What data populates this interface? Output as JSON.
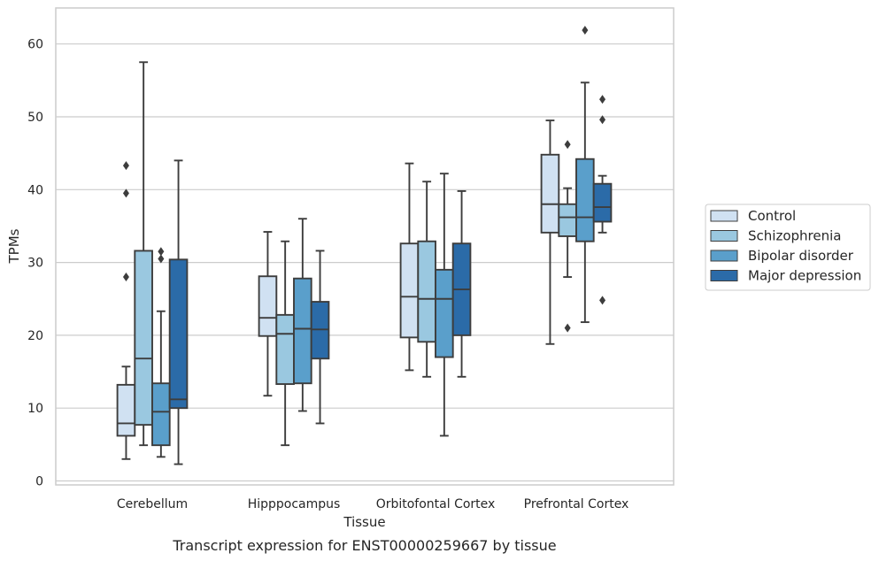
{
  "chart_data": {
    "type": "box",
    "xlabel": "Tissue",
    "ylabel": "TPMs",
    "caption": "Transcript expression for ENST00000259667 by tissue",
    "ylim": [
      -0.5,
      65
    ],
    "yticks": [
      0,
      10,
      20,
      30,
      40,
      50,
      60
    ],
    "grid": true,
    "legend_position": "right",
    "categories": [
      "Cerebellum",
      "Hipppocampus",
      "Orbitofontal Cortex",
      "Prefrontal Cortex"
    ],
    "series": [
      {
        "name": "Control",
        "color": "#d0e1f2",
        "boxes": [
          {
            "whislo": 3.0,
            "q1": 6.2,
            "med": 7.9,
            "q3": 13.2,
            "whishi": 15.7,
            "fliers": [
              28.0,
              39.5,
              43.3
            ]
          },
          {
            "whislo": 11.7,
            "q1": 19.9,
            "med": 22.4,
            "q3": 28.1,
            "whishi": 34.2,
            "fliers": []
          },
          {
            "whislo": 15.2,
            "q1": 19.7,
            "med": 25.3,
            "q3": 32.6,
            "whishi": 43.6,
            "fliers": []
          },
          {
            "whislo": 18.8,
            "q1": 34.1,
            "med": 38.0,
            "q3": 44.8,
            "whishi": 49.5,
            "fliers": []
          }
        ]
      },
      {
        "name": "Schizophrenia",
        "color": "#9ac8e0",
        "boxes": [
          {
            "whislo": 4.9,
            "q1": 7.7,
            "med": 16.8,
            "q3": 31.6,
            "whishi": 57.5,
            "fliers": []
          },
          {
            "whislo": 4.9,
            "q1": 13.3,
            "med": 20.2,
            "q3": 22.8,
            "whishi": 32.9,
            "fliers": []
          },
          {
            "whislo": 14.3,
            "q1": 19.1,
            "med": 25.0,
            "q3": 32.9,
            "whishi": 41.1,
            "fliers": []
          },
          {
            "whislo": 28.0,
            "q1": 33.6,
            "med": 36.2,
            "q3": 38.0,
            "whishi": 40.2,
            "fliers": [
              21.0,
              46.2
            ]
          }
        ]
      },
      {
        "name": "Bipolar disorder",
        "color": "#5a9fcb",
        "boxes": [
          {
            "whislo": 3.3,
            "q1": 4.9,
            "med": 9.5,
            "q3": 13.4,
            "whishi": 23.3,
            "fliers": [
              30.5,
              31.5
            ]
          },
          {
            "whislo": 9.6,
            "q1": 13.4,
            "med": 20.9,
            "q3": 27.8,
            "whishi": 36.0,
            "fliers": []
          },
          {
            "whislo": 6.2,
            "q1": 17.0,
            "med": 25.0,
            "q3": 29.0,
            "whishi": 42.2,
            "fliers": []
          },
          {
            "whislo": 21.8,
            "q1": 32.9,
            "med": 36.2,
            "q3": 44.2,
            "whishi": 54.7,
            "fliers": [
              61.9
            ]
          }
        ]
      },
      {
        "name": "Major depression",
        "color": "#2b6ba8",
        "boxes": [
          {
            "whislo": 2.3,
            "q1": 10.0,
            "med": 11.2,
            "q3": 30.4,
            "whishi": 44.0,
            "fliers": []
          },
          {
            "whislo": 7.9,
            "q1": 16.8,
            "med": 20.8,
            "q3": 24.6,
            "whishi": 31.6,
            "fliers": []
          },
          {
            "whislo": 14.3,
            "q1": 20.0,
            "med": 26.3,
            "q3": 32.6,
            "whishi": 39.8,
            "fliers": []
          },
          {
            "whislo": 34.1,
            "q1": 35.6,
            "med": 37.6,
            "q3": 40.8,
            "whishi": 41.9,
            "fliers": [
              24.8,
              49.6,
              52.4
            ]
          }
        ]
      }
    ]
  }
}
